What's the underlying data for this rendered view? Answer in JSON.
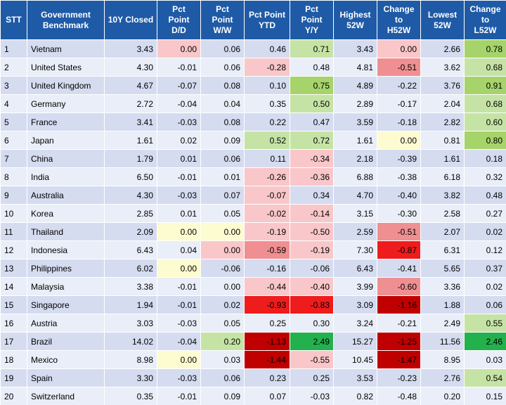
{
  "table": {
    "headers": [
      [
        "STT"
      ],
      [
        "Government",
        "Benchmark"
      ],
      [
        "10Y Closed"
      ],
      [
        "Pct",
        "Point",
        "D/D"
      ],
      [
        "Pct",
        "Point",
        "W/W"
      ],
      [
        "Pct Point",
        "YTD"
      ],
      [
        "Pct",
        "Point",
        "Y/Y"
      ],
      [
        "Highest",
        "52W"
      ],
      [
        "Change",
        "to",
        "H52W"
      ],
      [
        "Lowest",
        "52W"
      ],
      [
        "Change",
        "to",
        "L52W"
      ]
    ],
    "rows": [
      [
        "1",
        "Vietnam",
        "3.43",
        "0.00",
        "0.06",
        "0.46",
        "0.71",
        "3.43",
        "0.00",
        "2.66",
        "0.78"
      ],
      [
        "2",
        "United States",
        "4.30",
        "-0.01",
        "0.06",
        "-0.28",
        "0.48",
        "4.81",
        "-0.51",
        "3.62",
        "0.68"
      ],
      [
        "3",
        "United Kingdom",
        "4.67",
        "-0.07",
        "0.08",
        "0.10",
        "0.75",
        "4.89",
        "-0.22",
        "3.76",
        "0.91"
      ],
      [
        "4",
        "Germany",
        "2.72",
        "-0.04",
        "0.04",
        "0.35",
        "0.50",
        "2.89",
        "-0.17",
        "2.04",
        "0.68"
      ],
      [
        "5",
        "France",
        "3.41",
        "-0.03",
        "0.08",
        "0.22",
        "0.47",
        "3.59",
        "-0.18",
        "2.82",
        "0.60"
      ],
      [
        "6",
        "Japan",
        "1.61",
        "0.02",
        "0.09",
        "0.52",
        "0.72",
        "1.61",
        "0.00",
        "0.81",
        "0.80"
      ],
      [
        "7",
        "China",
        "1.79",
        "0.01",
        "0.06",
        "0.11",
        "-0.34",
        "2.18",
        "-0.39",
        "1.61",
        "0.18"
      ],
      [
        "8",
        "India",
        "6.50",
        "-0.01",
        "0.01",
        "-0.26",
        "-0.36",
        "6.88",
        "-0.38",
        "6.18",
        "0.32"
      ],
      [
        "9",
        "Australia",
        "4.30",
        "-0.03",
        "0.07",
        "-0.07",
        "0.34",
        "4.70",
        "-0.40",
        "3.82",
        "0.48"
      ],
      [
        "10",
        "Korea",
        "2.85",
        "0.01",
        "0.05",
        "-0.02",
        "-0.14",
        "3.15",
        "-0.30",
        "2.58",
        "0.27"
      ],
      [
        "11",
        "Thailand",
        "2.09",
        "0.00",
        "0.00",
        "-0.19",
        "-0.50",
        "2.59",
        "-0.51",
        "2.07",
        "0.02"
      ],
      [
        "12",
        "Indonesia",
        "6.43",
        "0.04",
        "0.00",
        "-0.59",
        "-0.19",
        "7.30",
        "-0.87",
        "6.31",
        "0.12"
      ],
      [
        "13",
        "Philippines",
        "6.02",
        "0.00",
        "-0.06",
        "-0.16",
        "-0.06",
        "6.43",
        "-0.41",
        "5.65",
        "0.37"
      ],
      [
        "14",
        "Malaysia",
        "3.38",
        "-0.01",
        "0.00",
        "-0.44",
        "-0.40",
        "3.99",
        "-0.60",
        "3.36",
        "0.02"
      ],
      [
        "15",
        "Singapore",
        "1.94",
        "-0.01",
        "0.02",
        "-0.93",
        "-0.83",
        "3.09",
        "-1.16",
        "1.88",
        "0.06"
      ],
      [
        "16",
        "Austria",
        "3.03",
        "-0.03",
        "0.05",
        "0.25",
        "0.30",
        "3.24",
        "-0.21",
        "2.49",
        "0.55"
      ],
      [
        "17",
        "Brazil",
        "14.02",
        "-0.04",
        "0.20",
        "-1.13",
        "2.49",
        "15.27",
        "-1.25",
        "11.56",
        "2.46"
      ],
      [
        "18",
        "Mexico",
        "8.98",
        "0.00",
        "0.03",
        "-1.44",
        "-0.55",
        "10.45",
        "-1.47",
        "8.95",
        "0.03"
      ],
      [
        "19",
        "Spain",
        "3.30",
        "-0.03",
        "0.06",
        "0.23",
        "0.25",
        "3.53",
        "-0.23",
        "2.76",
        "0.54"
      ],
      [
        "20",
        "Switzerland",
        "0.35",
        "-0.01",
        "0.09",
        "0.07",
        "-0.03",
        "0.82",
        "-0.48",
        "0.20",
        "0.15"
      ]
    ],
    "highlights": [
      [
        "",
        "",
        "",
        "rlt",
        "",
        "",
        "glt",
        "",
        "rlt",
        "",
        "gmed"
      ],
      [
        "",
        "",
        "",
        "",
        "",
        "rlt",
        "",
        "",
        "rmed",
        "",
        "glt"
      ],
      [
        "",
        "",
        "",
        "",
        "",
        "",
        "gmed",
        "",
        "",
        "",
        "gmed"
      ],
      [
        "",
        "",
        "",
        "",
        "",
        "",
        "glt",
        "",
        "",
        "",
        "glt"
      ],
      [
        "",
        "",
        "",
        "",
        "",
        "",
        "",
        "",
        "",
        "",
        "glt"
      ],
      [
        "",
        "",
        "",
        "",
        "",
        "glt",
        "glt",
        "",
        "ylw",
        "",
        "gmed"
      ],
      [
        "",
        "",
        "",
        "",
        "",
        "",
        "rlt",
        "",
        "",
        "",
        ""
      ],
      [
        "",
        "",
        "",
        "",
        "",
        "rlt",
        "rlt",
        "",
        "",
        "",
        ""
      ],
      [
        "",
        "",
        "",
        "",
        "",
        "rlt",
        "",
        "",
        "",
        "",
        ""
      ],
      [
        "",
        "",
        "",
        "",
        "",
        "rlt",
        "rlt",
        "",
        "",
        "",
        ""
      ],
      [
        "",
        "",
        "",
        "ylw",
        "ylw",
        "rlt",
        "rlt",
        "",
        "rmed",
        "",
        ""
      ],
      [
        "",
        "",
        "",
        "",
        "rlt",
        "rmed",
        "rlt",
        "",
        "rstr",
        "",
        ""
      ],
      [
        "",
        "",
        "",
        "ylw",
        "",
        "",
        "",
        "",
        "",
        "",
        ""
      ],
      [
        "",
        "",
        "",
        "",
        "",
        "rlt",
        "rlt",
        "",
        "rmed",
        "",
        ""
      ],
      [
        "",
        "",
        "",
        "",
        "",
        "rstr",
        "rstr",
        "",
        "rdk",
        "",
        ""
      ],
      [
        "",
        "",
        "",
        "",
        "",
        "",
        "",
        "",
        "",
        "",
        "glt"
      ],
      [
        "",
        "",
        "",
        "",
        "glt",
        "rdk",
        "gstr",
        "",
        "rdk",
        "",
        "gstr"
      ],
      [
        "",
        "",
        "",
        "ylw",
        "",
        "rdk",
        "rlt",
        "",
        "rdk",
        "",
        ""
      ],
      [
        "",
        "",
        "",
        "",
        "",
        "",
        "",
        "",
        "",
        "",
        "glt"
      ],
      [
        "",
        "",
        "",
        "",
        "",
        "",
        "",
        "",
        "",
        "",
        ""
      ]
    ]
  }
}
